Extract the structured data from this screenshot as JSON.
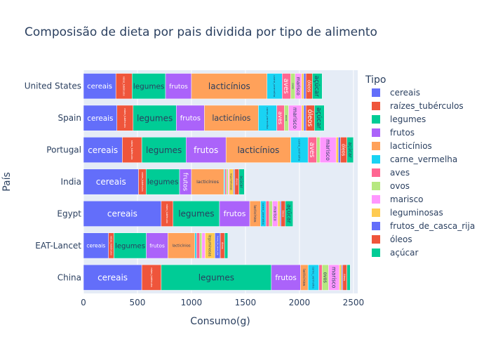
{
  "chart_data": {
    "type": "bar",
    "orientation": "horizontal",
    "barmode": "stack",
    "title": "Composisão de dieta por pais dividida por tipo de alimento",
    "xlabel": "Consumo(g)",
    "ylabel": "País",
    "legend_title": "Tipo",
    "legend_position": "right",
    "xlim": [
      0,
      2540
    ],
    "x_ticks": [
      0,
      500,
      1000,
      1500,
      2000,
      2500
    ],
    "grid": true,
    "categories": [
      "China",
      "EAT-Lancet",
      "Egypt",
      "India",
      "Portugal",
      "Spain",
      "United States"
    ],
    "series": [
      {
        "name": "cereais",
        "color": "#636efa",
        "values": [
          540,
          232,
          720,
          510,
          360,
          310,
          300
        ]
      },
      {
        "name": "raízes_tubérculos",
        "color": "#ef553b",
        "values": [
          180,
          50,
          110,
          70,
          180,
          150,
          150
        ]
      },
      {
        "name": "legumes",
        "color": "#00cc96",
        "values": [
          1020,
          300,
          430,
          310,
          410,
          400,
          310
        ]
      },
      {
        "name": "frutos",
        "color": "#ab63fa",
        "values": [
          270,
          200,
          280,
          110,
          370,
          260,
          240
        ]
      },
      {
        "name": "lacticínios",
        "color": "#ffa15a",
        "values": [
          70,
          250,
          100,
          300,
          600,
          500,
          700
        ]
      },
      {
        "name": "carne_vermelha",
        "color": "#19d3f3",
        "values": [
          100,
          15,
          50,
          10,
          160,
          170,
          140
        ]
      },
      {
        "name": "aves",
        "color": "#ff6692",
        "values": [
          30,
          30,
          30,
          15,
          80,
          70,
          80
        ]
      },
      {
        "name": "ovos",
        "color": "#b6e880",
        "values": [
          60,
          20,
          30,
          15,
          30,
          40,
          40
        ]
      },
      {
        "name": "marisco",
        "color": "#ff97ff",
        "values": [
          100,
          30,
          50,
          10,
          150,
          120,
          60
        ]
      },
      {
        "name": "leguminosas",
        "color": "#fecb52",
        "values": [
          20,
          90,
          20,
          40,
          20,
          20,
          20
        ]
      },
      {
        "name": "frutos_de_casca_rija",
        "color": "#636efa",
        "values": [
          10,
          50,
          10,
          10,
          20,
          20,
          20
        ]
      },
      {
        "name": "óleos",
        "color": "#ef553b",
        "values": [
          40,
          40,
          40,
          40,
          60,
          80,
          60
        ]
      },
      {
        "name": "açúcar",
        "color": "#00cc96",
        "values": [
          30,
          30,
          70,
          50,
          60,
          90,
          90
        ]
      }
    ]
  }
}
